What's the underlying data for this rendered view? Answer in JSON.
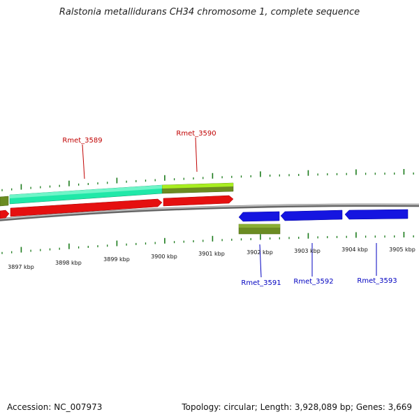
{
  "title": "Ralstonia metallidurans CH34 chromosome 1, complete sequence",
  "footer": {
    "accession": "Accession: NC_007973",
    "summary": "Topology: circular; Length: 3,928,089 bp; Genes: 3,669"
  },
  "colors": {
    "tick": "#1a7a1a",
    "backbone": "#8a8a8a",
    "gene_red": "#e51010",
    "gene_blue": "#1515e0",
    "gene_cyan": "#20e8a8",
    "gene_olive": "#6b8c22",
    "gene_lime": "#a8ee20",
    "label_red": "#c00000",
    "label_blue": "#0000c0"
  },
  "axis_labels": [
    "3897 kbp",
    "3898 kbp",
    "3899 kbp",
    "3900 kbp",
    "3901 kbp",
    "3902 kbp",
    "3903 kbp",
    "3904 kbp",
    "3905 kbp"
  ],
  "gene_labels": {
    "top": [
      "Rmet_3589",
      "Rmet_3590"
    ],
    "bottom": [
      "Rmet_3591",
      "Rmet_3592",
      "Rmet_3593"
    ]
  }
}
